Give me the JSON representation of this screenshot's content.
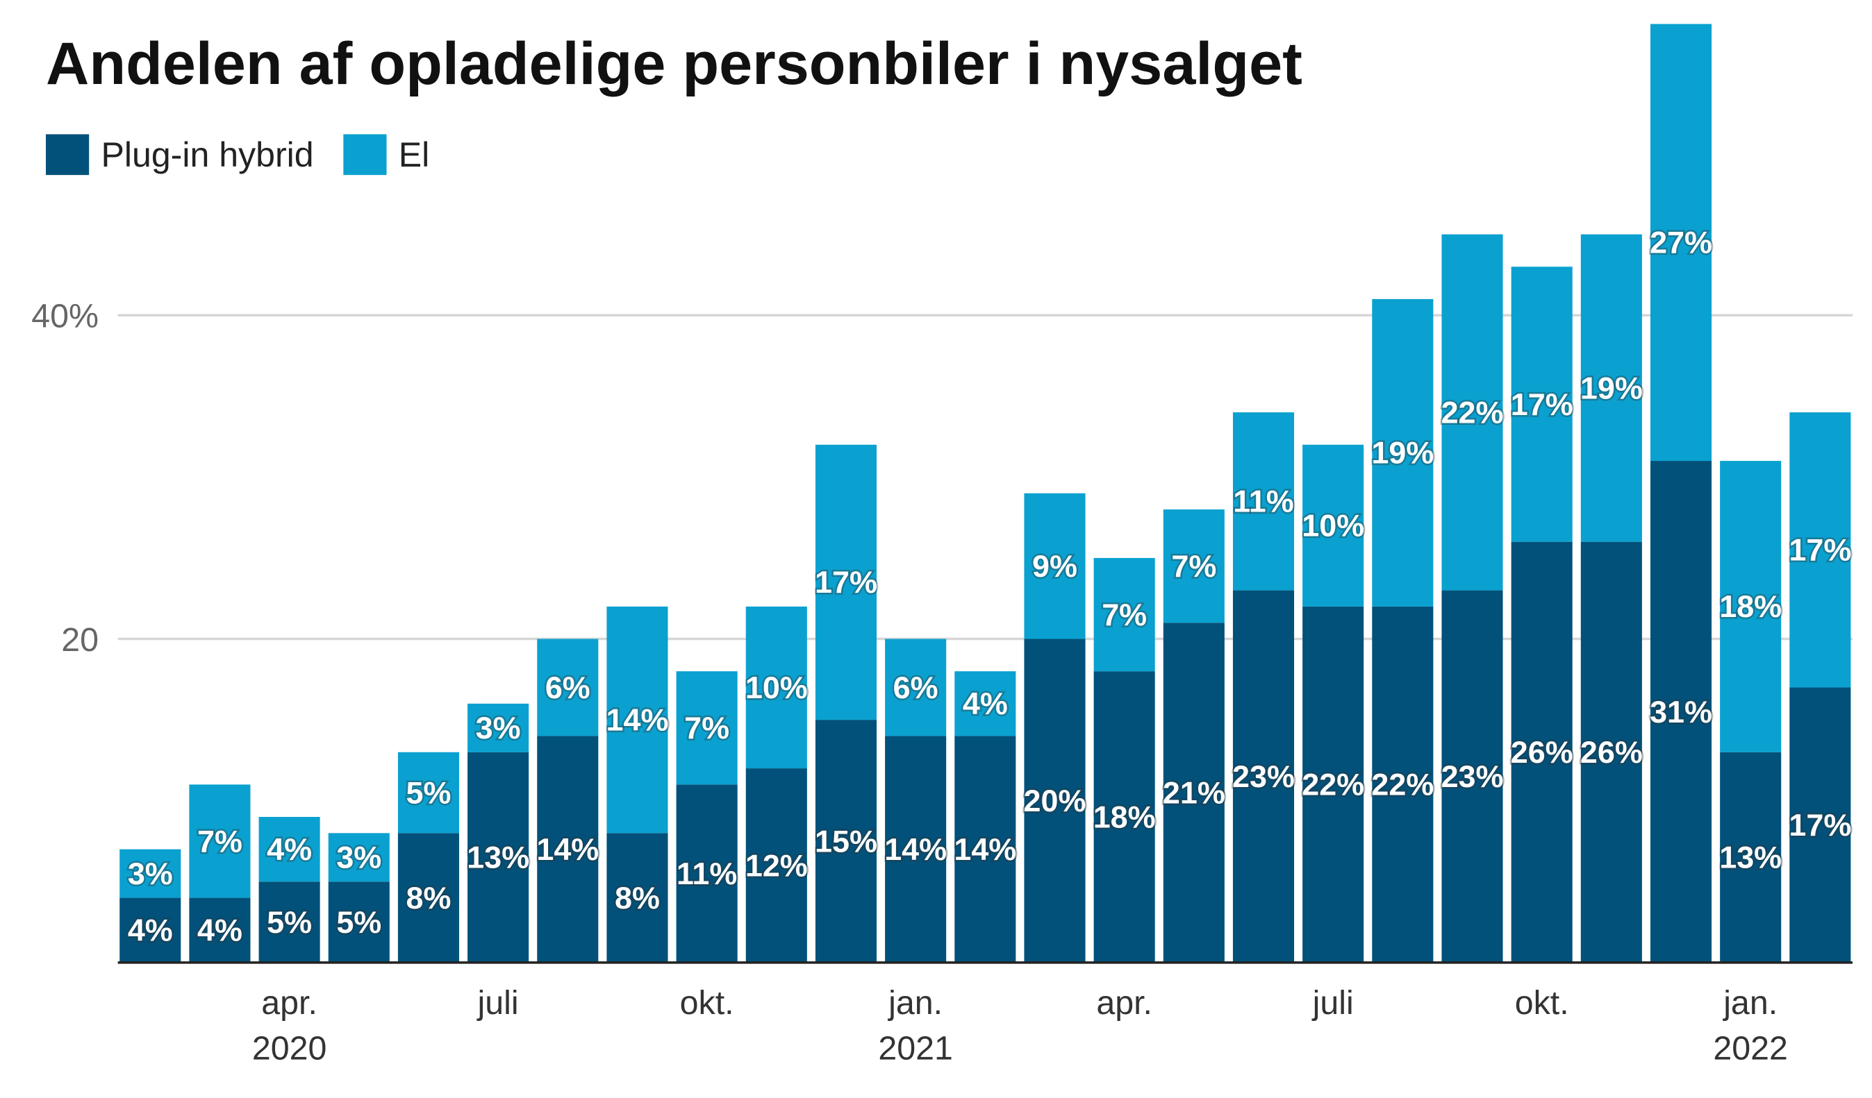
{
  "chart_data": {
    "type": "bar",
    "stacked": true,
    "title": "Andelen af opladelige personbiler i nysalget",
    "legend_position": "top-left",
    "grid": true,
    "ylim": [
      0,
      58
    ],
    "yticks": [
      {
        "value": 20,
        "label": "20"
      },
      {
        "value": 40,
        "label": "40%"
      }
    ],
    "categories": [
      "feb. 2020",
      "mar. 2020",
      "apr. 2020",
      "maj 2020",
      "jun. 2020",
      "jul. 2020",
      "aug. 2020",
      "sep. 2020",
      "okt. 2020",
      "nov. 2020",
      "dec. 2020",
      "jan. 2021",
      "feb. 2021",
      "mar. 2021",
      "apr. 2021",
      "maj 2021",
      "jun. 2021",
      "jul. 2021",
      "aug. 2021",
      "sep. 2021",
      "okt. 2021",
      "nov. 2021",
      "dec. 2021",
      "jan. 2022",
      "feb. 2022"
    ],
    "xticks": [
      {
        "index": 2,
        "label": "apr.",
        "year": "2020"
      },
      {
        "index": 5,
        "label": "juli",
        "year": ""
      },
      {
        "index": 8,
        "label": "okt.",
        "year": ""
      },
      {
        "index": 11,
        "label": "jan.",
        "year": "2021"
      },
      {
        "index": 14,
        "label": "apr.",
        "year": ""
      },
      {
        "index": 17,
        "label": "juli",
        "year": ""
      },
      {
        "index": 20,
        "label": "okt.",
        "year": ""
      },
      {
        "index": 23,
        "label": "jan.",
        "year": "2022"
      }
    ],
    "series": [
      {
        "name": "Plug-in hybrid",
        "color": "#02517a",
        "values": [
          4,
          4,
          5,
          5,
          8,
          13,
          14,
          8,
          11,
          12,
          15,
          14,
          14,
          20,
          18,
          21,
          23,
          22,
          22,
          23,
          26,
          26,
          31,
          13,
          17
        ]
      },
      {
        "name": "El",
        "color": "#0aa1d0",
        "values": [
          3,
          7,
          4,
          3,
          5,
          3,
          6,
          14,
          7,
          10,
          17,
          6,
          4,
          9,
          7,
          7,
          11,
          10,
          19,
          22,
          17,
          19,
          27,
          18,
          17
        ]
      }
    ]
  }
}
